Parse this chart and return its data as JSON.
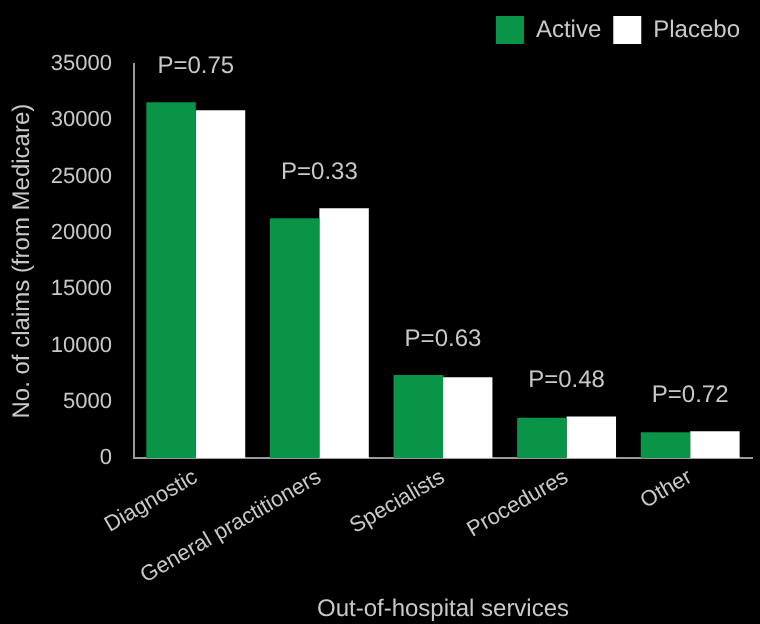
{
  "chart_data": {
    "type": "bar",
    "xlabel": "Out-of-hospital services",
    "ylabel": "No. of claims (from Medicare)",
    "categories": [
      "Diagnostic",
      "General practitioners",
      "Specialists",
      "Procedures",
      "Other"
    ],
    "series": [
      {
        "name": "Active",
        "color": "#0a9448",
        "values": [
          31600,
          21300,
          7400,
          3600,
          2300
        ]
      },
      {
        "name": "Placebo",
        "color": "#ffffff",
        "values": [
          30900,
          22200,
          7200,
          3700,
          2400
        ]
      }
    ],
    "ylim": [
      0,
      35000
    ],
    "yticks": [
      0,
      5000,
      10000,
      15000,
      20000,
      25000,
      30000,
      35000
    ],
    "annotations": [
      "P=0.75",
      "P=0.33",
      "P=0.63",
      "P=0.48",
      "P=0.72"
    ],
    "grid": false,
    "legend": "top right"
  }
}
